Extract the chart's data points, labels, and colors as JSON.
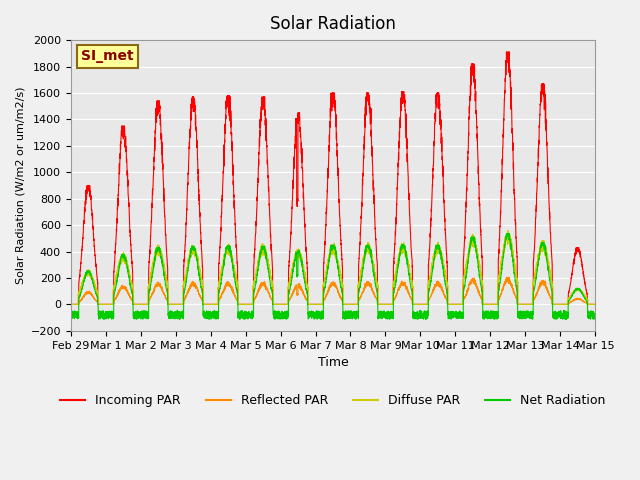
{
  "title": "Solar Radiation",
  "xlabel": "Time",
  "ylabel": "Solar Radiation (W/m2 or um/m2/s)",
  "ylim": [
    -200,
    2000
  ],
  "yticks": [
    -200,
    0,
    200,
    400,
    600,
    800,
    1000,
    1200,
    1400,
    1600,
    1800,
    2000
  ],
  "annotation_text": "SI_met",
  "annotation_color": "#8B0000",
  "annotation_bg": "#FFFF99",
  "colors": {
    "incoming": "#FF0000",
    "reflected": "#FF8C00",
    "diffuse": "#CCCC00",
    "net": "#00CC00"
  },
  "legend_labels": [
    "Incoming PAR",
    "Reflected PAR",
    "Diffuse PAR",
    "Net Radiation"
  ],
  "n_days": 15,
  "pts_per_day": 288,
  "incoming_peaks": [
    900,
    1350,
    1540,
    1570,
    1580,
    1570,
    1450,
    1600,
    1600,
    1610,
    1600,
    1820,
    1910,
    1670,
    430
  ],
  "tick_labels": [
    "Feb 29",
    "Mar 1",
    "Mar 2",
    "Mar 3",
    "Mar 4",
    "Mar 5",
    "Mar 6",
    "Mar 7",
    "Mar 8",
    "Mar 9",
    "Mar 10",
    "Mar 11",
    "Mar 12",
    "Mar 13",
    "Mar 14",
    "Mar 15"
  ],
  "bg_color": "#EBEBEB",
  "plot_bg": "#E8E8E8",
  "fig_bg": "#F0F0F0"
}
